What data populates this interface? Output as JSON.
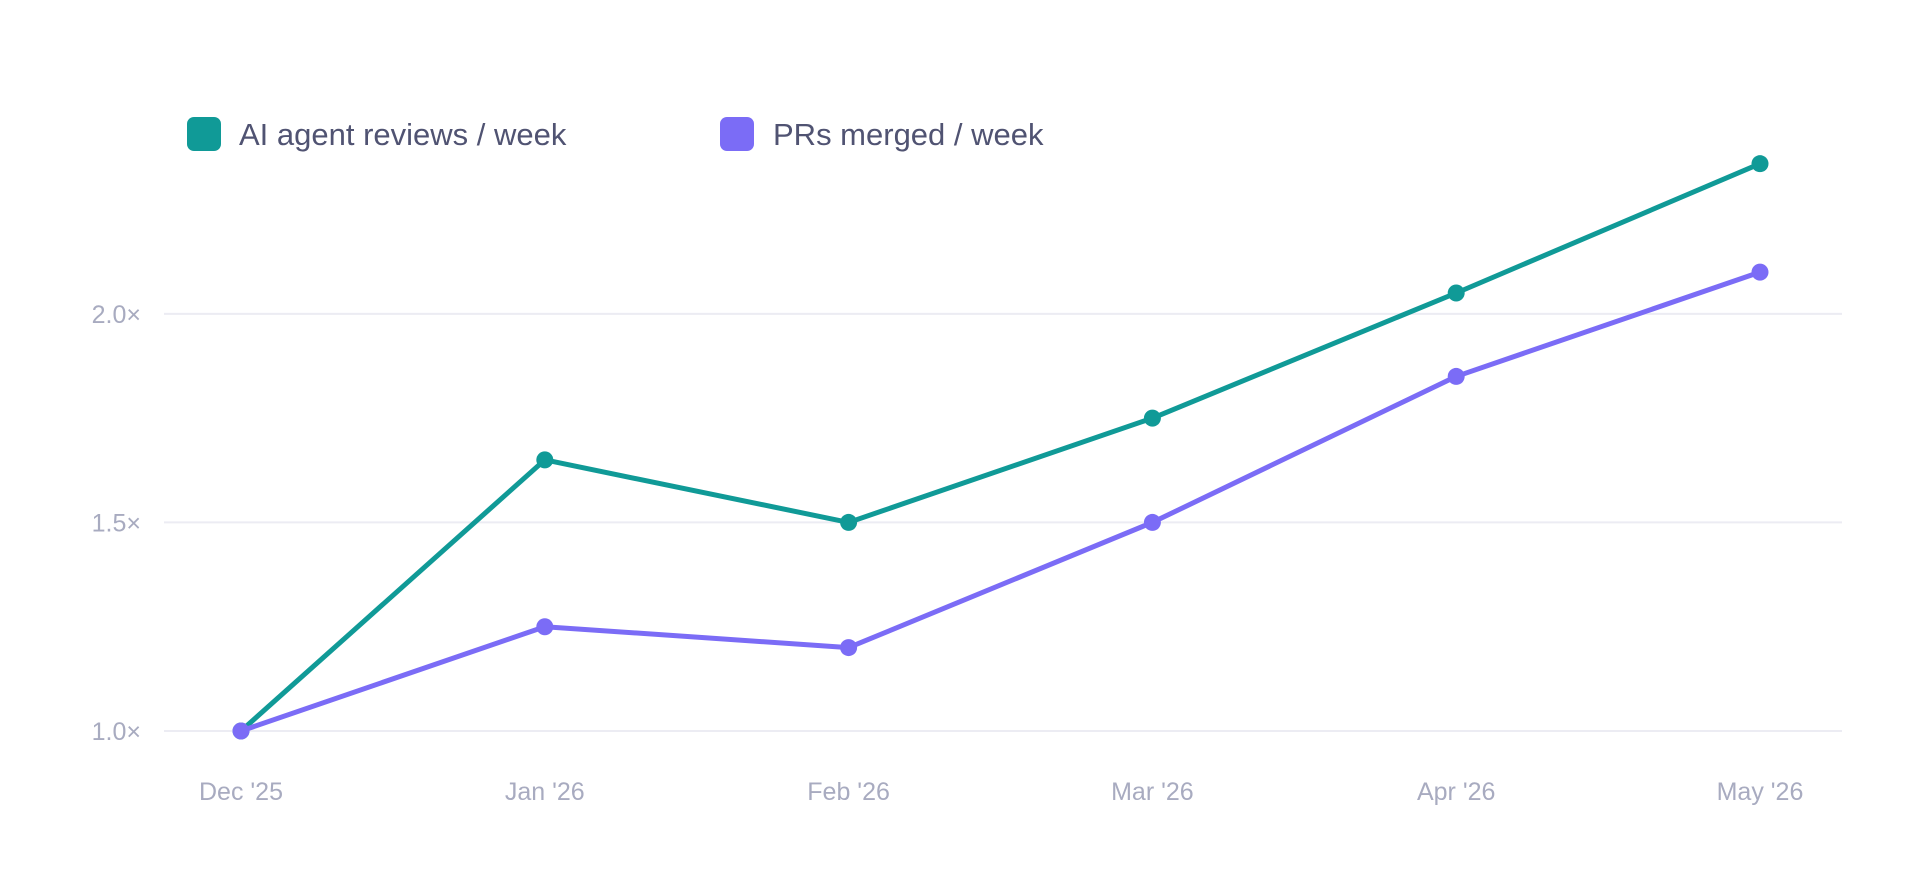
{
  "chart_data": {
    "type": "line",
    "categories": [
      "Dec '25",
      "Jan '26",
      "Feb '26",
      "Mar '26",
      "Apr '26",
      "May '26"
    ],
    "series": [
      {
        "name": "AI agent reviews / week",
        "color": "#109a97",
        "values": [
          1.0,
          1.65,
          1.5,
          1.75,
          2.05,
          2.36
        ]
      },
      {
        "name": "PRs merged / week",
        "color": "#7b6cf6",
        "values": [
          1.0,
          1.25,
          1.2,
          1.5,
          1.85,
          2.1
        ]
      }
    ],
    "y_ticks": [
      {
        "value": 1.0,
        "label": "1.0×"
      },
      {
        "value": 1.5,
        "label": "1.5×"
      },
      {
        "value": 2.0,
        "label": "2.0×"
      }
    ],
    "ylim": [
      1.0,
      2.4
    ],
    "grid": true,
    "legend_position": "top-left",
    "title": "",
    "xlabel": "",
    "ylabel": ""
  }
}
